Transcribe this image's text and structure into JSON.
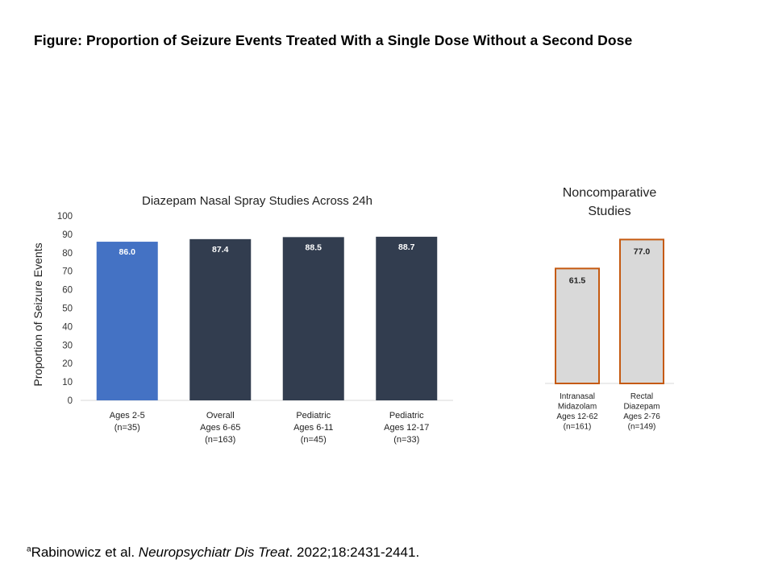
{
  "figure_title": "Figure: Proportion of Seizure Events Treated With a Single Dose Without a Second Dose",
  "footnote": {
    "marker": "a",
    "authors": "Rabinowicz et al. ",
    "journal": "Neuropsychiatr Dis Treat",
    "citation": ". 2022;18:2431-2441."
  },
  "colors": {
    "highlight": "#4472C4",
    "dark": "#323D4F",
    "noncomp_fill": "#D9D9D9",
    "noncomp_stroke": "#C55A11",
    "axis": "#D9D9D9"
  },
  "chart_data": [
    {
      "type": "bar",
      "title": "Diazepam Nasal Spray Studies Across 24h",
      "xlabel": "",
      "ylabel": "Proportion of Seizure Events",
      "ylim": [
        0,
        100
      ],
      "yticks": [
        0,
        10,
        20,
        30,
        40,
        50,
        60,
        70,
        80,
        90,
        100
      ],
      "grid": false,
      "categories": [
        [
          "Ages 2-5",
          "(n=35)"
        ],
        [
          "Overall",
          "Ages 6-65",
          "(n=163)"
        ],
        [
          "Pediatric",
          "Ages 6-11",
          "(n=45)"
        ],
        [
          "Pediatric",
          "Ages 12-17",
          "(n=33)"
        ]
      ],
      "values": [
        86.0,
        87.4,
        88.5,
        88.7
      ],
      "data_labels": [
        "86.0",
        "87.4",
        "88.5",
        "88.7"
      ],
      "bar_colors": [
        "highlight",
        "dark",
        "dark",
        "dark"
      ]
    },
    {
      "type": "bar",
      "title": [
        "Noncomparative",
        "Studies"
      ],
      "xlabel": "",
      "ylabel": "",
      "ylim": [
        0,
        100
      ],
      "grid": false,
      "categories": [
        [
          "Intranasal",
          "Midazolam",
          "Ages 12-62",
          "(n=161)"
        ],
        [
          "Rectal",
          "Diazepam",
          "Ages 2-76",
          "(n=149)"
        ]
      ],
      "values": [
        61.5,
        77.0
      ],
      "data_labels": [
        "61.5",
        "77.0"
      ]
    }
  ]
}
